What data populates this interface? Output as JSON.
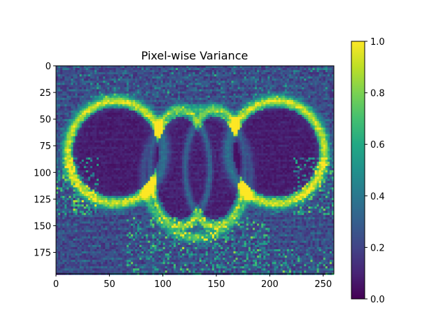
{
  "chart_data": {
    "type": "heatmap",
    "title": "Pixel-wise Variance",
    "xlabel": "",
    "ylabel": "",
    "image_width": 260,
    "image_height": 195,
    "xlim": [
      0,
      260
    ],
    "ylim": [
      195,
      0
    ],
    "xticks": [
      0,
      50,
      100,
      150,
      200,
      250
    ],
    "yticks": [
      0,
      25,
      50,
      75,
      100,
      125,
      150,
      175
    ],
    "colormap": "viridis",
    "colorbar": {
      "range": [
        0.0,
        1.0
      ],
      "ticks": [
        "0.0",
        "0.2",
        "0.4",
        "0.6",
        "0.8",
        "1.0"
      ],
      "tick_values": [
        0.0,
        0.2,
        0.4,
        0.6,
        0.8,
        1.0
      ]
    },
    "grid": false,
    "colors": {
      "low": "#440154",
      "mid": "#21918c",
      "high": "#fde725"
    }
  }
}
